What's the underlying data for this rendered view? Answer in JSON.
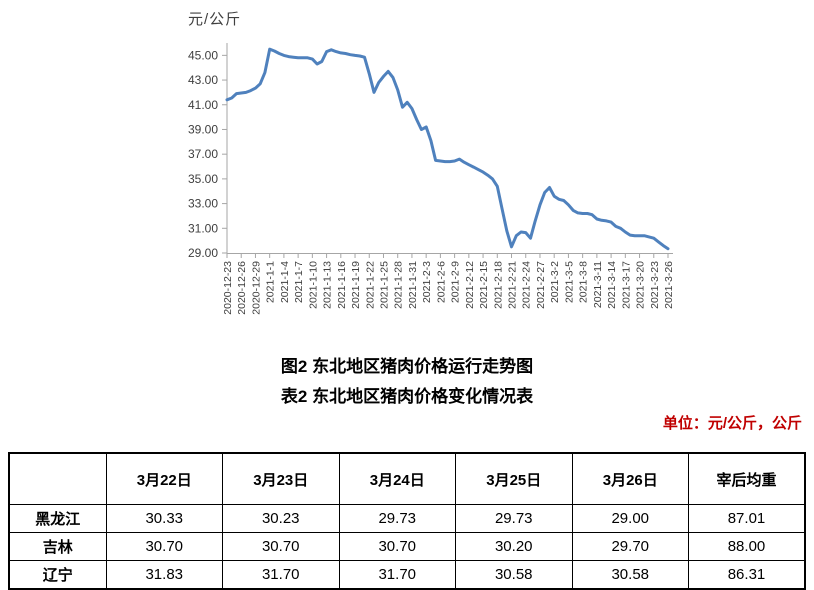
{
  "figure_title": "图2 东北地区猪肉价格运行走势图",
  "table_title": "表2 东北地区猪肉价格变化情况表",
  "unit_note": "单位：元/公斤，公斤",
  "colors": {
    "line": "#4F81BD",
    "axis": "#A6A6A6",
    "tick_text": "#3F3F3F",
    "unit_note": "#C00000"
  },
  "chart_data": [
    {
      "type": "line",
      "y_axis_unit": "元/公斤",
      "ylim": [
        29,
        46
      ],
      "yticks": [
        29,
        31,
        33,
        35,
        37,
        39,
        41,
        43,
        45
      ],
      "ytick_decimals": 2,
      "grid": false,
      "legend": "none",
      "days_between_x_ticks": 3,
      "x_tick_labels": [
        "2020-12-23",
        "2020-12-26",
        "2020-12-29",
        "2021-1-1",
        "2021-1-4",
        "2021-1-7",
        "2021-1-10",
        "2021-1-13",
        "2021-1-16",
        "2021-1-19",
        "2021-1-22",
        "2021-1-25",
        "2021-1-28",
        "2021-1-31",
        "2021-2-3",
        "2021-2-6",
        "2021-2-9",
        "2021-2-12",
        "2021-2-15",
        "2021-2-18",
        "2021-2-21",
        "2021-2-24",
        "2021-2-27",
        "2021-3-2",
        "2021-3-5",
        "2021-3-8",
        "2021-3-11",
        "2021-3-14",
        "2021-3-17",
        "2021-3-20",
        "2021-3-23",
        "2021-3-26"
      ],
      "series": [
        {
          "name": "东北地区猪肉价格",
          "values": [
            41.4,
            41.55,
            41.9,
            41.95,
            42.0,
            42.15,
            42.35,
            42.7,
            43.6,
            45.5,
            45.35,
            45.15,
            45.0,
            44.9,
            44.85,
            44.8,
            44.8,
            44.8,
            44.7,
            44.3,
            44.5,
            45.3,
            45.45,
            45.3,
            45.2,
            45.15,
            45.05,
            45.0,
            44.95,
            44.85,
            43.5,
            42.0,
            42.8,
            43.3,
            43.7,
            43.2,
            42.2,
            40.8,
            41.2,
            40.7,
            39.8,
            39.0,
            39.2,
            38.1,
            36.5,
            36.45,
            36.4,
            36.4,
            36.45,
            36.6,
            36.35,
            36.15,
            35.95,
            35.75,
            35.55,
            35.3,
            35.0,
            34.4,
            32.6,
            30.8,
            29.5,
            30.4,
            30.7,
            30.65,
            30.2,
            31.6,
            32.9,
            33.9,
            34.3,
            33.6,
            33.35,
            33.25,
            32.9,
            32.45,
            32.25,
            32.2,
            32.2,
            32.1,
            31.75,
            31.65,
            31.6,
            31.5,
            31.15,
            31.0,
            30.7,
            30.45,
            30.4,
            30.4,
            30.4,
            30.3,
            30.2,
            29.9,
            29.6,
            29.35
          ]
        }
      ]
    },
    {
      "type": "table",
      "columns": [
        "",
        "3月22日",
        "3月23日",
        "3月24日",
        "3月25日",
        "3月26日",
        "宰后均重"
      ],
      "rows": [
        {
          "name": "黑龙江",
          "values": [
            "30.33",
            "30.23",
            "29.73",
            "29.73",
            "29.00",
            "87.01"
          ]
        },
        {
          "name": "吉林",
          "values": [
            "30.70",
            "30.70",
            "30.70",
            "30.20",
            "29.70",
            "88.00"
          ]
        },
        {
          "name": "辽宁",
          "values": [
            "31.83",
            "31.70",
            "31.70",
            "30.58",
            "30.58",
            "86.31"
          ]
        }
      ]
    }
  ]
}
